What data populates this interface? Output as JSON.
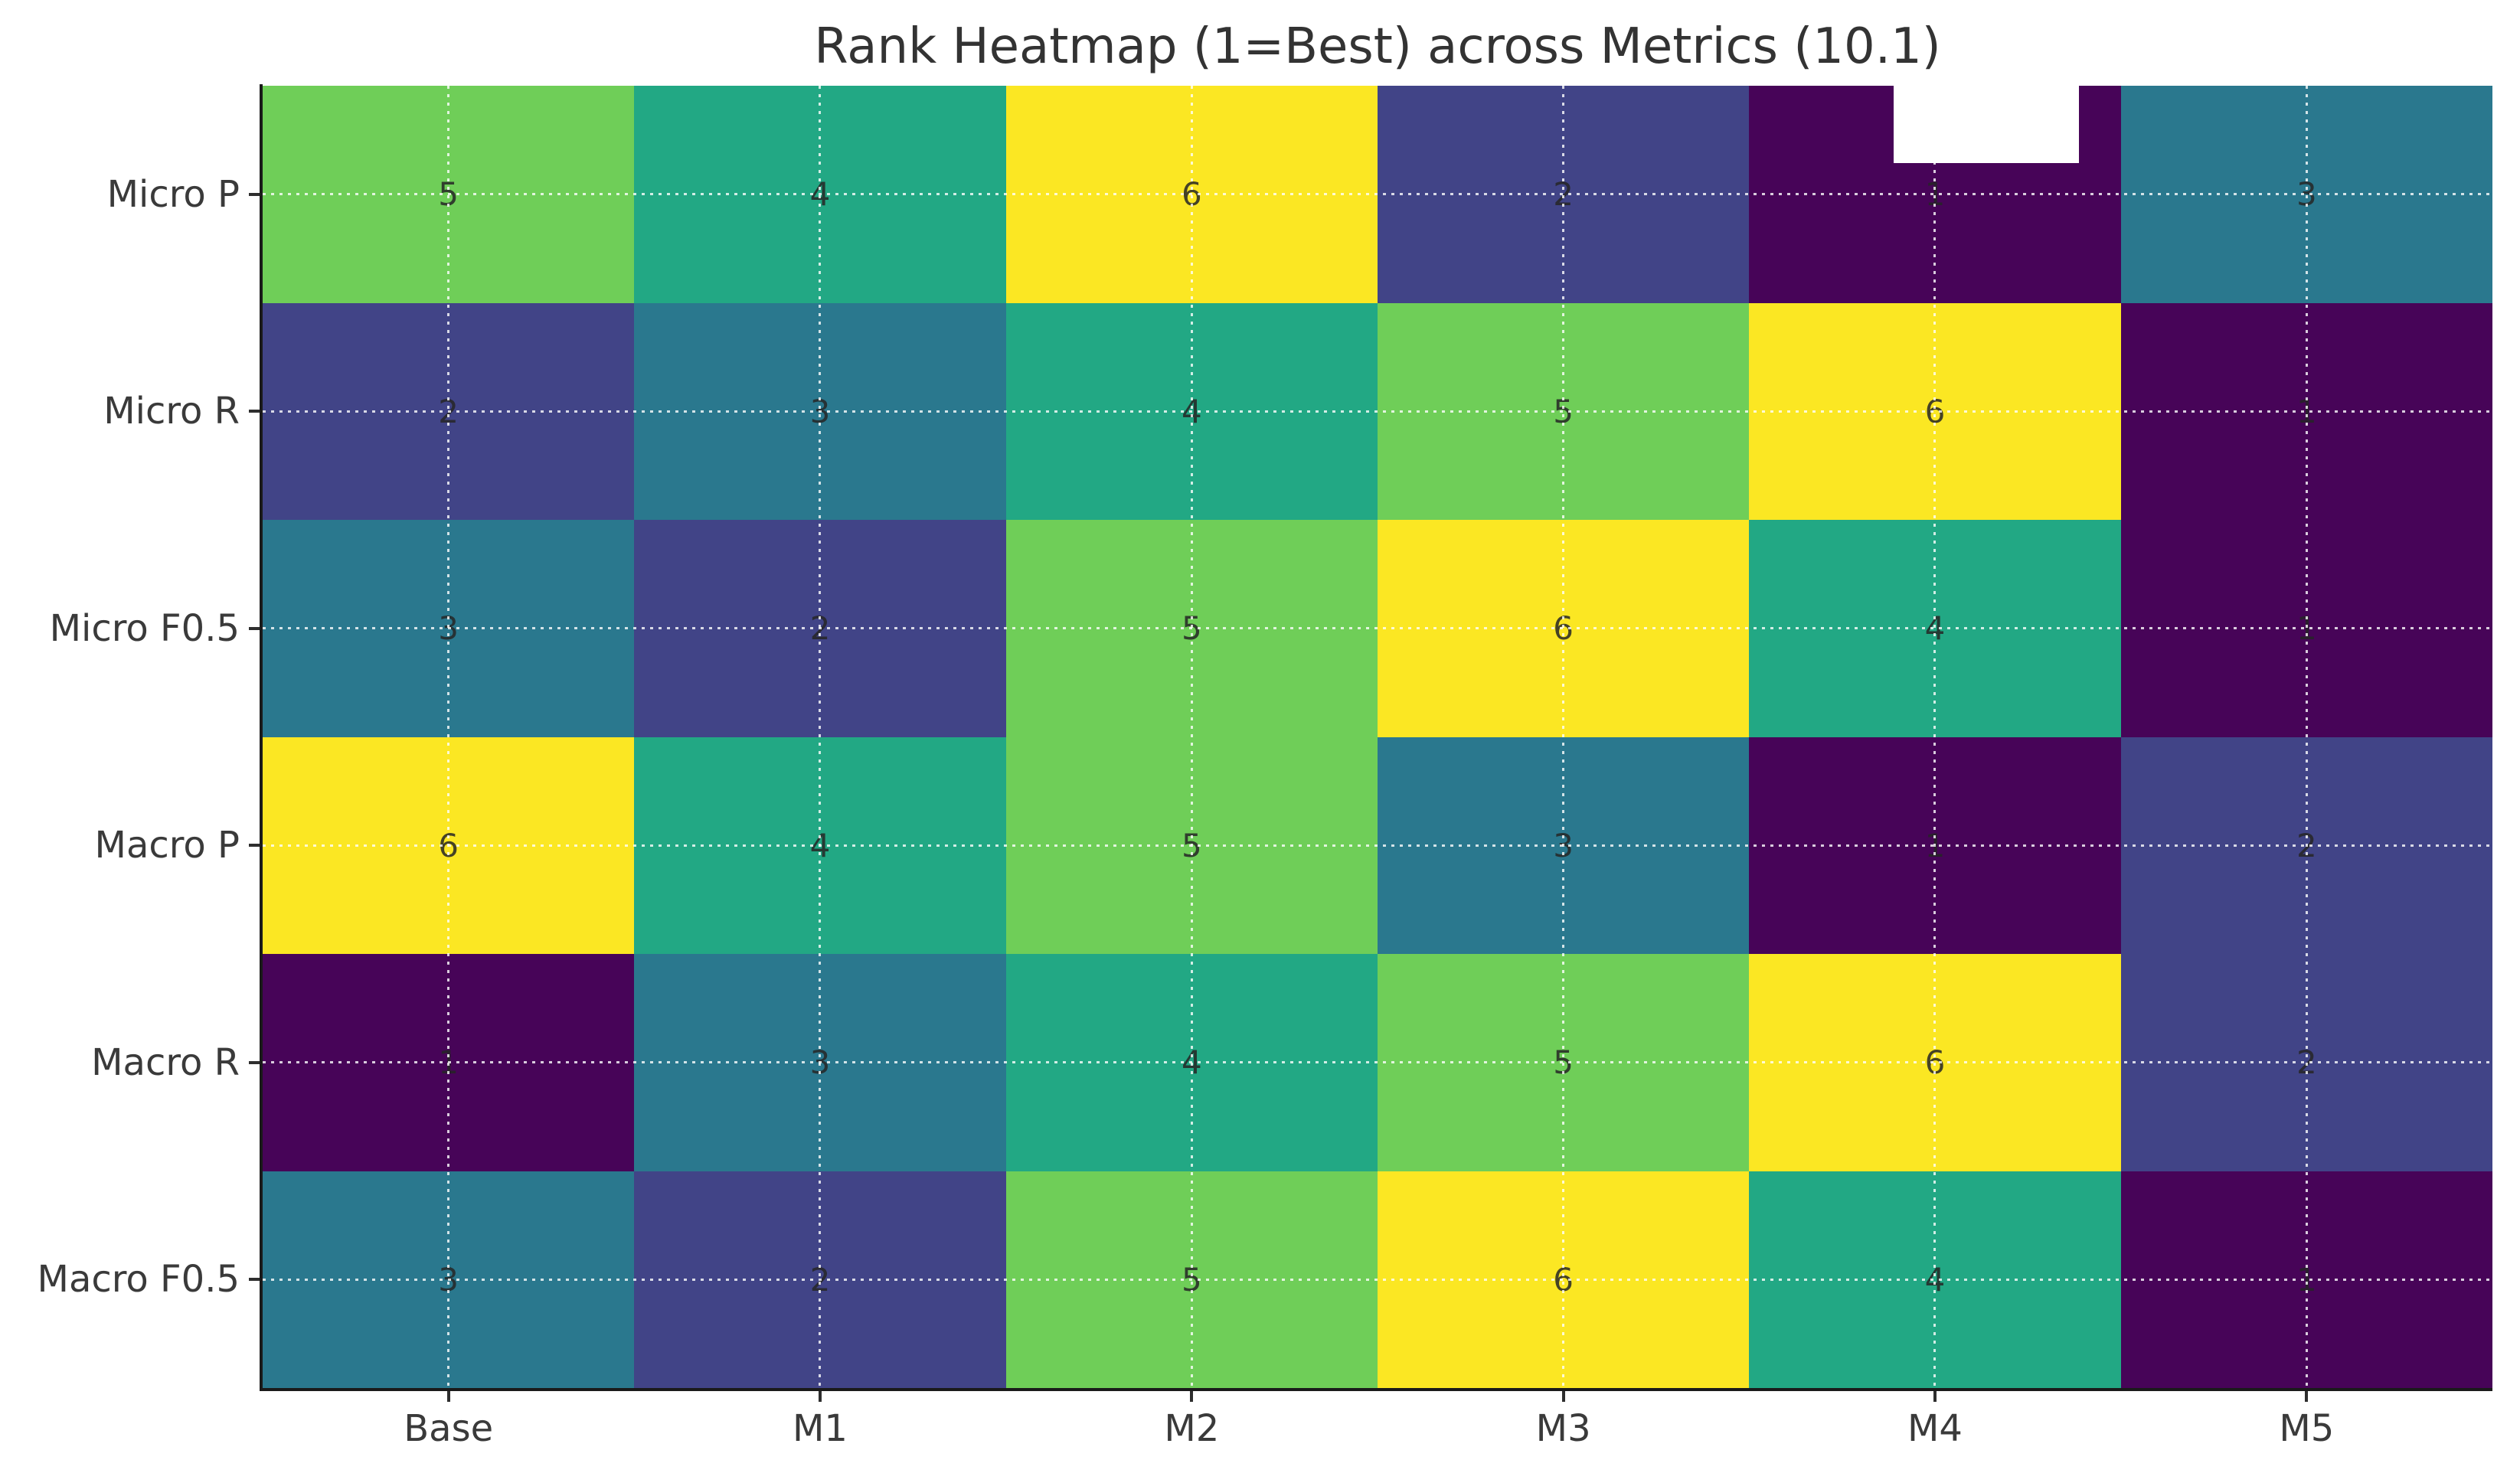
{
  "chart_data": {
    "type": "heatmap",
    "title": "Rank Heatmap (1=Best) across Metrics (10.1)",
    "columns": [
      "Base",
      "M1",
      "M2",
      "M3",
      "M4",
      "M5"
    ],
    "rows": [
      "Micro P",
      "Micro R",
      "Micro F0.5",
      "Macro P",
      "Macro R",
      "Macro F0.5"
    ],
    "values": [
      [
        5,
        4,
        6,
        2,
        1,
        3
      ],
      [
        2,
        3,
        4,
        5,
        6,
        1
      ],
      [
        3,
        2,
        5,
        6,
        4,
        1
      ],
      [
        6,
        4,
        5,
        3,
        1,
        2
      ],
      [
        1,
        3,
        4,
        5,
        6,
        2
      ],
      [
        3,
        2,
        5,
        6,
        4,
        1
      ]
    ],
    "value_range": [
      1,
      6
    ],
    "colormap": "viridis",
    "rank_colors": {
      "1": "#470458",
      "2": "#414487",
      "3": "#2a788e",
      "4": "#22a884",
      "5": "#6fce58",
      "6": "#fbe723"
    },
    "annotation_color": "#262626",
    "grid": true,
    "gridline_style": "white dashed lines through cell centers",
    "legend_position": "none"
  }
}
